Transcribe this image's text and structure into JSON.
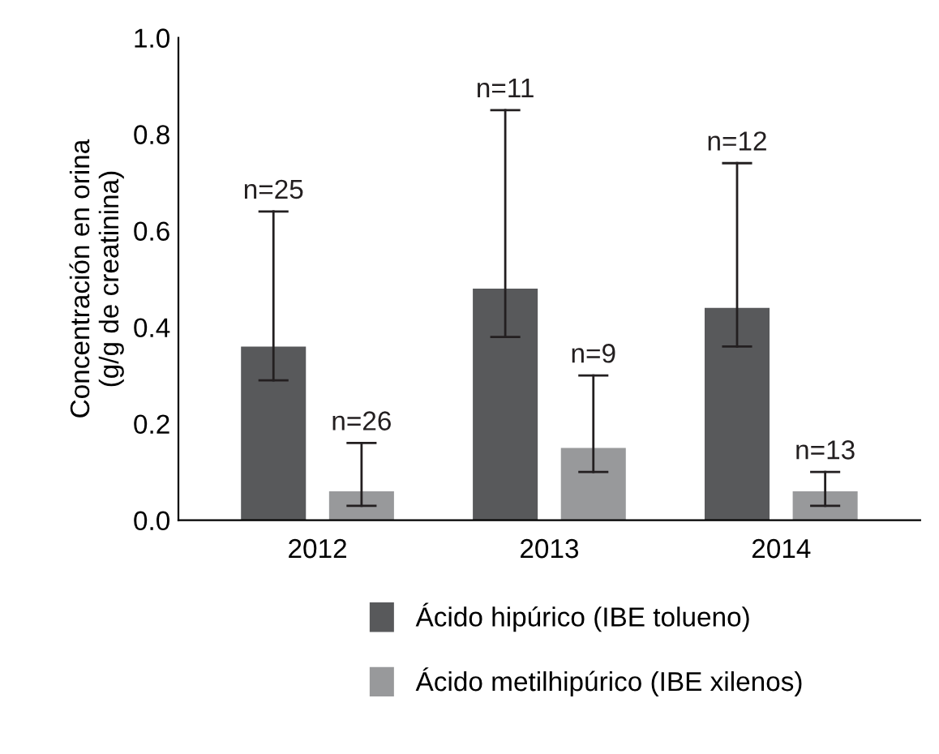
{
  "chart_data": {
    "type": "bar",
    "ylabel": "Concentración en orina\n(g/g de creatinina)",
    "categories": [
      "2012",
      "2013",
      "2014"
    ],
    "series": [
      {
        "name": "Ácido hipúrico (IBE tolueno)",
        "color": "#58595b",
        "values": [
          0.36,
          0.48,
          0.44
        ],
        "errors": [
          [
            0.29,
            0.64
          ],
          [
            0.38,
            0.85
          ],
          [
            0.36,
            0.74
          ]
        ]
      },
      {
        "name": "Ácido metilhipúrico (IBE xilenos)",
        "color": "#98999b",
        "values": [
          0.06,
          0.15,
          0.06
        ],
        "errors": [
          [
            0.03,
            0.16
          ],
          [
            0.1,
            0.3
          ],
          [
            0.03,
            0.1
          ]
        ]
      }
    ],
    "annotations": [
      "n=25",
      "n=26",
      "n=11",
      "n=9",
      "n=12",
      "n=13"
    ],
    "ylim": [
      0,
      1.0
    ],
    "yticks": [
      {
        "value": 0,
        "label": "0.0"
      },
      {
        "value": 0.2,
        "label": "0.2"
      },
      {
        "value": 0.4,
        "label": "0.4"
      },
      {
        "value": 0.6,
        "label": "0.6"
      },
      {
        "value": 0.8,
        "label": "0.8"
      },
      {
        "value": 1.0,
        "label": "1.0"
      }
    ],
    "grid": false,
    "legend": "bottom"
  }
}
